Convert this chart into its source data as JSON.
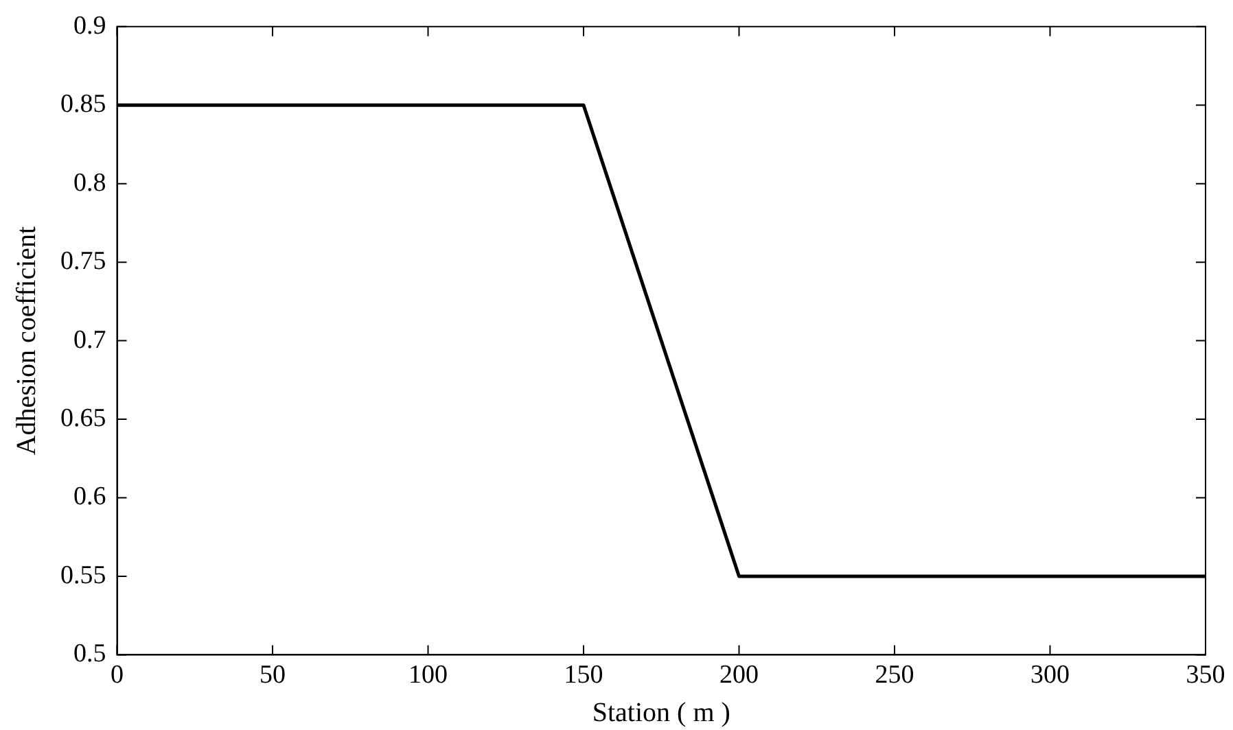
{
  "chart_data": {
    "type": "line",
    "xlabel": "Station ( m )",
    "ylabel": "Adhesion coefficient",
    "x": [
      0,
      150,
      200,
      350
    ],
    "series": [
      {
        "color": "#000000",
        "values": [
          0.85,
          0.85,
          0.55,
          0.55
        ]
      }
    ],
    "xlim": [
      0,
      350
    ],
    "xticks": [
      0,
      50,
      100,
      150,
      200,
      250,
      300,
      350
    ],
    "ylim": [
      0.5,
      0.9
    ],
    "yticks": [
      0.5,
      0.55,
      0.6,
      0.65,
      0.7,
      0.75,
      0.8,
      0.85,
      0.9
    ],
    "grid": false,
    "legend": false,
    "marker": "none",
    "line_style": "solid"
  }
}
